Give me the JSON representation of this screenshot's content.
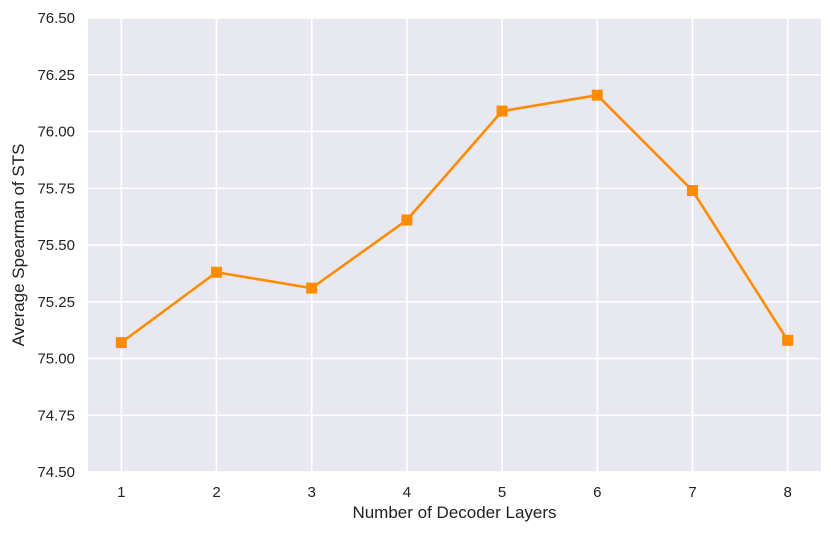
{
  "chart_data": {
    "type": "line",
    "title": "",
    "xlabel": "Number of Decoder Layers",
    "ylabel": "Average Spearman of STS",
    "x": [
      1,
      2,
      3,
      4,
      5,
      6,
      7,
      8
    ],
    "xticks": [
      "1",
      "2",
      "3",
      "4",
      "5",
      "6",
      "7",
      "8"
    ],
    "yticks": [
      "74.50",
      "74.75",
      "75.00",
      "75.25",
      "75.50",
      "75.75",
      "76.00",
      "76.25",
      "76.50"
    ],
    "ylim": [
      74.5,
      76.5
    ],
    "xlim": [
      0.65,
      8.35
    ],
    "grid": true,
    "legend": "none",
    "series": [
      {
        "values": [
          75.07,
          75.38,
          75.31,
          75.61,
          76.09,
          76.16,
          75.74,
          75.08
        ],
        "color": "#ff8c00",
        "marker": "square"
      }
    ],
    "background_color": "#e8e8f0",
    "grid_color": "#ffffff"
  }
}
